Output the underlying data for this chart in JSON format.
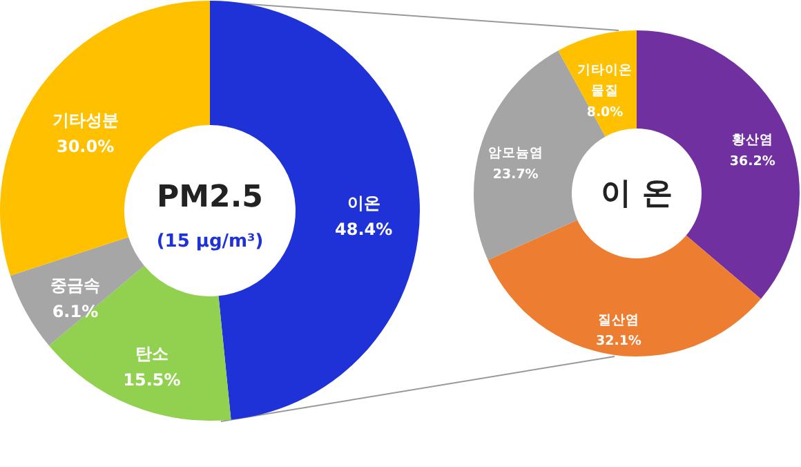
{
  "chart_data": [
    {
      "type": "donut",
      "title": "PM2.5",
      "subtitle": "(15 μg/m³)",
      "categories": [
        "이온",
        "탄소",
        "중금속",
        "기타성분"
      ],
      "values": [
        48.4,
        15.5,
        6.1,
        30.0
      ],
      "colors": [
        "#1f32d8",
        "#92d050",
        "#a6a6a6",
        "#ffc000"
      ],
      "value_labels": [
        "48.4%",
        "15.5%",
        "6.1%",
        "30.0%"
      ],
      "legend": false
    },
    {
      "type": "donut",
      "title": "이 온",
      "categories": [
        "황산염",
        "질산염",
        "암모늄염",
        "기타이온 물질"
      ],
      "values": [
        36.2,
        32.1,
        23.7,
        8.0
      ],
      "colors": [
        "#7030a0",
        "#ed7d31",
        "#a5a5a5",
        "#ffc000"
      ],
      "value_labels": [
        "36.2%",
        "32.1%",
        "23.7%",
        "8.0%"
      ],
      "legend": false
    }
  ]
}
